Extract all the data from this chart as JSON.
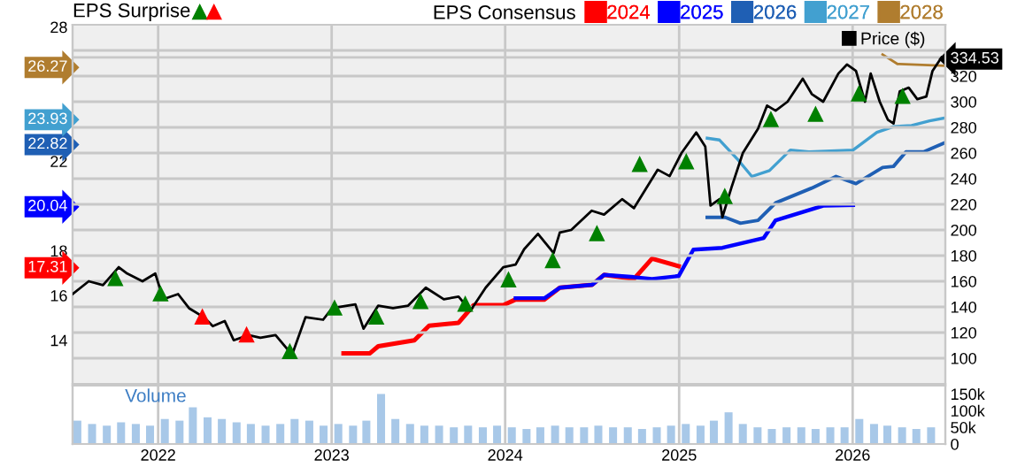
{
  "chart_data": [
    {
      "type": "line",
      "legend_title": "EPS Consensus",
      "annotations": [
        "EPS Surprise"
      ],
      "legend": "top",
      "grid": true,
      "tick_labels": "y",
      "marker": "none",
      "xlim": [
        "2021-07-05",
        "2026-07-15"
      ],
      "xticks": [
        "2022",
        "2023",
        "2024",
        "2025",
        "2026"
      ],
      "ylim": [
        12.05,
        28.1
      ],
      "yticks": [
        14,
        16,
        18,
        22,
        28,
        {
          "value": 17.31,
          "label": "17.31"
        },
        {
          "value": 20.04,
          "label": "20.04"
        },
        {
          "value": 22.82,
          "label": "22.82"
        },
        {
          "value": 23.93,
          "label": "23.93"
        },
        {
          "value": 26.27,
          "label": "26.27"
        }
      ],
      "y2lim": [
        80,
        360
      ],
      "y2ticks": [
        100,
        120,
        140,
        160,
        180,
        200,
        220,
        240,
        260,
        280,
        300,
        320,
        {
          "value": 340,
          "label": null
        },
        {
          "value": 334.53,
          "label": "334.53"
        }
      ],
      "series": [
        {
          "name": "2024",
          "color": "#ff0000",
          "x": [
            "2023-01-26",
            "2023-03-22",
            "2023-04-09",
            "2023-06-24",
            "2023-07-25",
            "2023-09-25",
            "2023-10-27",
            "2023-12-28",
            "2024-01-23",
            "2024-03-24",
            "2024-04-25",
            "2024-07-02",
            "2024-07-27",
            "2024-09-28",
            "2024-11-05",
            "2024-12-31"
          ],
          "values": [
            13.41,
            13.41,
            13.73,
            14.0,
            14.65,
            14.78,
            15.57,
            15.57,
            15.82,
            15.82,
            16.35,
            16.48,
            16.92,
            16.74,
            17.65,
            17.31
          ]
        },
        {
          "name": "2025",
          "color": "#0000ff",
          "x": [
            "2024-01-23",
            "2024-03-24",
            "2024-04-25",
            "2024-07-02",
            "2024-07-27",
            "2024-09-28",
            "2024-11-05",
            "2024-12-31",
            "2025-01-31",
            "2025-04-02",
            "2025-06-28",
            "2025-07-23",
            "2025-10-31",
            "2026-01-02"
          ],
          "values": [
            15.88,
            15.88,
            16.35,
            16.48,
            16.92,
            16.82,
            16.74,
            16.87,
            18.05,
            18.13,
            18.57,
            19.36,
            20.01,
            20.04
          ]
        },
        {
          "name": "2026",
          "color": "#1f5fb4",
          "x": [
            "2025-03-01",
            "2025-04-08",
            "2025-05-10",
            "2025-06-16",
            "2025-07-23",
            "2025-10-07",
            "2025-11-27",
            "2026-01-08",
            "2026-03-05",
            "2026-03-28",
            "2026-04-23",
            "2026-05-30",
            "2026-07-13"
          ],
          "values": [
            19.49,
            19.49,
            19.23,
            19.36,
            20.14,
            20.8,
            21.32,
            21.0,
            21.72,
            21.77,
            22.42,
            22.42,
            22.82
          ]
        },
        {
          "name": "2027",
          "color": "#42a0d0",
          "x": [
            "2025-03-01",
            "2025-03-27",
            "2025-05-03",
            "2025-06-03",
            "2025-07-10",
            "2025-08-23",
            "2025-10-01",
            "2026-01-02",
            "2026-02-21",
            "2026-03-28",
            "2026-05-05",
            "2026-06-12",
            "2026-07-13"
          ],
          "values": [
            23.03,
            22.95,
            22.11,
            21.32,
            21.58,
            22.5,
            22.42,
            22.5,
            23.29,
            23.55,
            23.6,
            23.81,
            23.93
          ]
        },
        {
          "name": "2028",
          "color": "#b07d2f",
          "x": [
            "2026-03-05",
            "2026-04-05",
            "2026-07-13"
          ],
          "values": [
            26.77,
            26.35,
            26.27
          ]
        },
        {
          "name": "Price ($)",
          "color": "#000000",
          "axis": "y2",
          "x": [
            "2021-07-05",
            "2021-08-08",
            "2021-09-07",
            "2021-10-10",
            "2021-10-28",
            "2021-11-29",
            "2021-12-26",
            "2022-01-12",
            "2022-02-12",
            "2022-03-07",
            "2022-04-07",
            "2022-04-26",
            "2022-05-21",
            "2022-06-09",
            "2022-07-10",
            "2022-08-04",
            "2022-09-05",
            "2022-09-30",
            "2022-10-12",
            "2022-11-07",
            "2022-12-14",
            "2023-01-02",
            "2023-02-20",
            "2023-03-09",
            "2023-04-09",
            "2023-05-10",
            "2023-06-11",
            "2023-07-18",
            "2023-08-25",
            "2023-09-25",
            "2023-10-20",
            "2023-11-21",
            "2023-12-28",
            "2024-01-23",
            "2024-02-10",
            "2024-03-10",
            "2024-04-12",
            "2024-04-25",
            "2024-05-19",
            "2024-07-01",
            "2024-07-27",
            "2024-09-03",
            "2024-09-28",
            "2024-11-17",
            "2024-12-12",
            "2025-01-06",
            "2025-02-06",
            "2025-02-25",
            "2025-03-08",
            "2025-03-27",
            "2025-04-02",
            "2025-04-21",
            "2025-05-15",
            "2025-06-16",
            "2025-07-05",
            "2025-07-23",
            "2025-08-17",
            "2025-09-18",
            "2025-10-07",
            "2025-10-31",
            "2025-12-02",
            "2025-12-20",
            "2026-01-08",
            "2026-01-27",
            "2026-02-08",
            "2026-02-27",
            "2026-03-16",
            "2026-03-28",
            "2026-04-10",
            "2026-04-29",
            "2026-05-17",
            "2026-06-05",
            "2026-06-18",
            "2026-07-07"
          ],
          "values": [
            150,
            160,
            157,
            171,
            166,
            160,
            166,
            146,
            150,
            139,
            132,
            125,
            129,
            114,
            118,
            116,
            118,
            107,
            105,
            132,
            130,
            139,
            142,
            123,
            141,
            139,
            141,
            155,
            146,
            148,
            137,
            155,
            171,
            173,
            185,
            197,
            182,
            198,
            200,
            215,
            212,
            224,
            217,
            247,
            242,
            260,
            276,
            265,
            219,
            224,
            210,
            233,
            260,
            279,
            297,
            293,
            300,
            318,
            306,
            300,
            322,
            329,
            324,
            300,
            322,
            300,
            286,
            283,
            308,
            311,
            302,
            304,
            324,
            334.53
          ]
        },
        {
          "type": "scatter",
          "color": "#008000",
          "axis": "y2",
          "marker": "triangle",
          "x": [
            "2021-10-03",
            "2022-01-06",
            "2022-10-05",
            "2023-01-07",
            "2023-04-05",
            "2023-07-07",
            "2023-10-09",
            "2024-01-08",
            "2024-04-10",
            "2024-07-12",
            "2024-10-10",
            "2025-01-16",
            "2025-04-07",
            "2025-07-13",
            "2025-10-15",
            "2026-01-14",
            "2026-04-16"
          ],
          "values": [
            162,
            150,
            105,
            139,
            132,
            144,
            142,
            161,
            176,
            197,
            251,
            253,
            226,
            286,
            290,
            306,
            304
          ]
        },
        {
          "type": "scatter",
          "color": "#ff0000",
          "axis": "y2",
          "marker": "triangle",
          "x": [
            "2022-04-04",
            "2022-07-06"
          ],
          "values": [
            132,
            118
          ]
        }
      ]
    },
    {
      "type": "bar",
      "title": "Volume",
      "grid": "x",
      "xlim": [
        "2021-07-05",
        "2026-07-15"
      ],
      "xticks": [
        "2022",
        "2023",
        "2024",
        "2025",
        "2026"
      ],
      "y2lim": [
        0,
        175000
      ],
      "y2ticks": [
        0,
        {
          "value": 50000,
          "label": "50k"
        },
        {
          "value": 100000,
          "label": "100k"
        },
        {
          "value": 150000,
          "label": "150k"
        }
      ],
      "x": [
        "2021-07-15",
        "2021-08-15",
        "2021-09-15",
        "2021-10-15",
        "2021-11-15",
        "2021-12-15",
        "2022-01-15",
        "2022-02-15",
        "2022-03-15",
        "2022-04-15",
        "2022-05-15",
        "2022-06-15",
        "2022-07-15",
        "2022-08-15",
        "2022-09-15",
        "2022-10-15",
        "2022-11-15",
        "2022-12-15",
        "2023-01-15",
        "2023-02-15",
        "2023-03-15",
        "2023-04-15",
        "2023-05-15",
        "2023-06-15",
        "2023-07-15",
        "2023-08-15",
        "2023-09-15",
        "2023-10-15",
        "2023-11-15",
        "2023-12-15",
        "2024-01-15",
        "2024-02-15",
        "2024-03-15",
        "2024-04-15",
        "2024-05-15",
        "2024-06-15",
        "2024-07-15",
        "2024-08-15",
        "2024-09-15",
        "2024-10-15",
        "2024-11-15",
        "2024-12-15",
        "2025-01-15",
        "2025-02-15",
        "2025-03-15",
        "2025-04-15",
        "2025-05-15",
        "2025-06-15",
        "2025-07-15",
        "2025-08-15",
        "2025-09-15",
        "2025-10-15",
        "2025-11-15",
        "2025-12-15",
        "2026-01-15",
        "2026-02-15",
        "2026-03-15",
        "2026-04-15",
        "2026-05-15",
        "2026-06-15"
      ],
      "series": [
        {
          "color": "#a8c8e8",
          "axis": "y2",
          "values": [
            70000,
            60000,
            55000,
            65000,
            60000,
            55000,
            75000,
            70000,
            110000,
            80000,
            75000,
            65000,
            60000,
            55000,
            60000,
            75000,
            70000,
            55000,
            60000,
            55000,
            70000,
            150000,
            75000,
            60000,
            55000,
            55000,
            50000,
            55000,
            50000,
            55000,
            50000,
            45000,
            50000,
            55000,
            50000,
            50000,
            55000,
            50000,
            50000,
            45000,
            50000,
            55000,
            60000,
            55000,
            70000,
            95000,
            60000,
            50000,
            45000,
            50000,
            50000,
            45000,
            50000,
            50000,
            75000,
            60000,
            55000,
            50000,
            45000,
            50000
          ]
        }
      ]
    }
  ]
}
